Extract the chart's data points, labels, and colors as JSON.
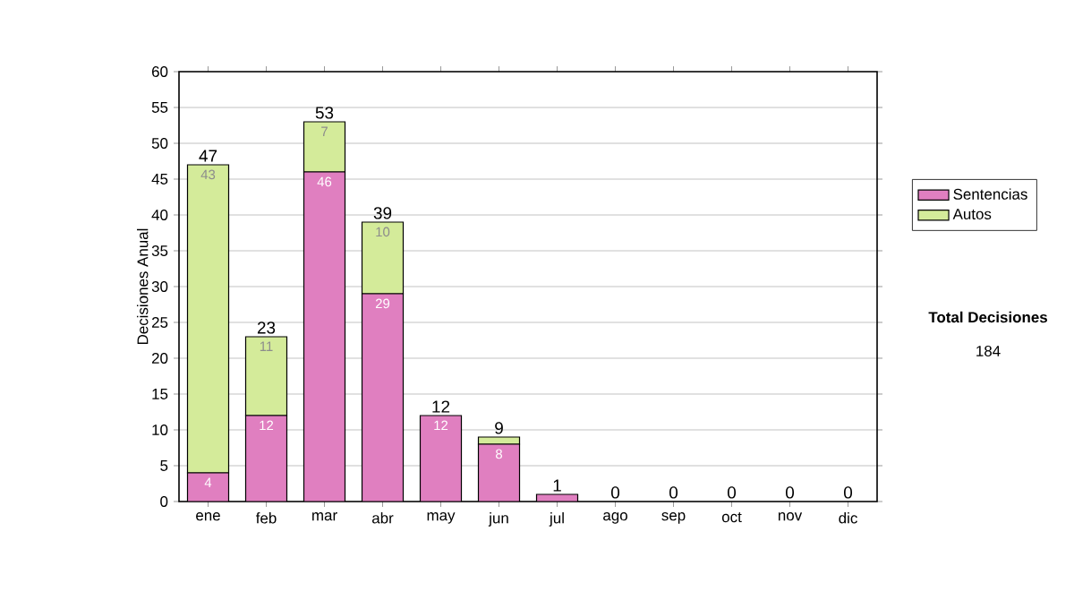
{
  "chart_data": {
    "type": "bar",
    "stacked": true,
    "ylabel": "Decisiones Anual",
    "categories": [
      "ene",
      "feb",
      "mar",
      "abr",
      "may",
      "jun",
      "jul",
      "ago",
      "sep",
      "oct",
      "nov",
      "dic"
    ],
    "series": [
      {
        "name": "Sentencias",
        "color": "#e07fc0",
        "values": [
          4,
          12,
          46,
          29,
          12,
          8,
          1,
          0,
          0,
          0,
          0,
          0
        ],
        "value_labels": [
          "4",
          "12",
          "46",
          "29",
          "12",
          "8",
          null,
          null,
          null,
          null,
          null,
          null
        ]
      },
      {
        "name": "Autos",
        "color": "#d4eb9a",
        "values": [
          43,
          11,
          7,
          10,
          0,
          1,
          0,
          0,
          0,
          0,
          0,
          0
        ],
        "value_labels": [
          "43",
          "11",
          "7",
          "10",
          null,
          null,
          null,
          null,
          null,
          null,
          null,
          null
        ]
      }
    ],
    "totals": [
      "47",
      "23",
      "53",
      "39",
      "12",
      "9",
      "1",
      "0",
      "0",
      "0",
      "0",
      "0"
    ],
    "ylim": [
      0,
      60
    ],
    "yticks": [
      0,
      5,
      10,
      15,
      20,
      25,
      30,
      35,
      40,
      45,
      50,
      55,
      60
    ],
    "grid": "y",
    "legend": "right",
    "annotations": [
      "Total Decisiones",
      "184"
    ]
  }
}
